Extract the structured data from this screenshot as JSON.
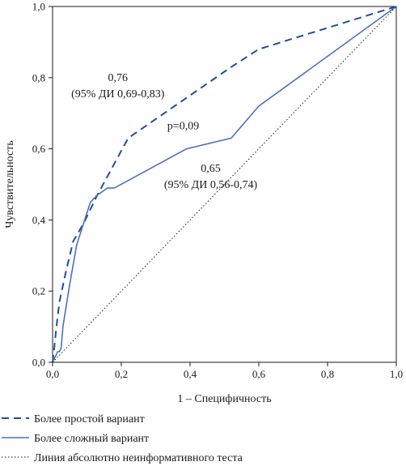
{
  "chart_data": {
    "type": "line",
    "xlabel": "1 – Специфичность",
    "ylabel": "Чувствительность",
    "xlim": [
      0,
      1
    ],
    "ylim": [
      0,
      1
    ],
    "x_ticks": [
      "0,0",
      "0,2",
      "0,4",
      "0,6",
      "0,8",
      "1,0"
    ],
    "y_ticks": [
      "0,0",
      "0,2",
      "0,4",
      "0,6",
      "0,8",
      "1,0"
    ],
    "grid": false,
    "legend_position": "bottom",
    "series": [
      {
        "name": "Более простой вариант",
        "style": "dashed",
        "color": "#1f4e9c",
        "x": [
          0,
          0.005,
          0.01,
          0.02,
          0.04,
          0.06,
          0.09,
          0.13,
          0.22,
          0.52,
          0.6,
          1.0
        ],
        "y": [
          0,
          0.04,
          0.09,
          0.17,
          0.26,
          0.34,
          0.39,
          0.47,
          0.63,
          0.83,
          0.88,
          1.0
        ]
      },
      {
        "name": "Более сложный вариант",
        "style": "solid",
        "color": "#4a6fc0",
        "x": [
          0,
          0.01,
          0.015,
          0.02,
          0.025,
          0.03,
          0.04,
          0.05,
          0.07,
          0.11,
          0.13,
          0.16,
          0.18,
          0.39,
          0.52,
          0.6,
          1.0
        ],
        "y": [
          0,
          0.02,
          0.03,
          0.03,
          0.04,
          0.1,
          0.16,
          0.22,
          0.33,
          0.45,
          0.47,
          0.49,
          0.49,
          0.6,
          0.63,
          0.72,
          1.0
        ]
      },
      {
        "name": "Линия абсолютно неинформативного теста",
        "style": "dotted",
        "color": "#1a1a1a",
        "x": [
          0,
          1
        ],
        "y": [
          0,
          1
        ]
      }
    ],
    "annotations": [
      {
        "lines": [
          "0,76",
          "(95% ДИ 0,69-0,83)"
        ],
        "x": 0.19,
        "y": 0.79
      },
      {
        "lines": [
          "p=0,09"
        ],
        "x": 0.38,
        "y": 0.655
      },
      {
        "lines": [
          "0,65",
          "(95% ДИ 0,56-0,74)"
        ],
        "x": 0.46,
        "y": 0.535
      }
    ]
  }
}
